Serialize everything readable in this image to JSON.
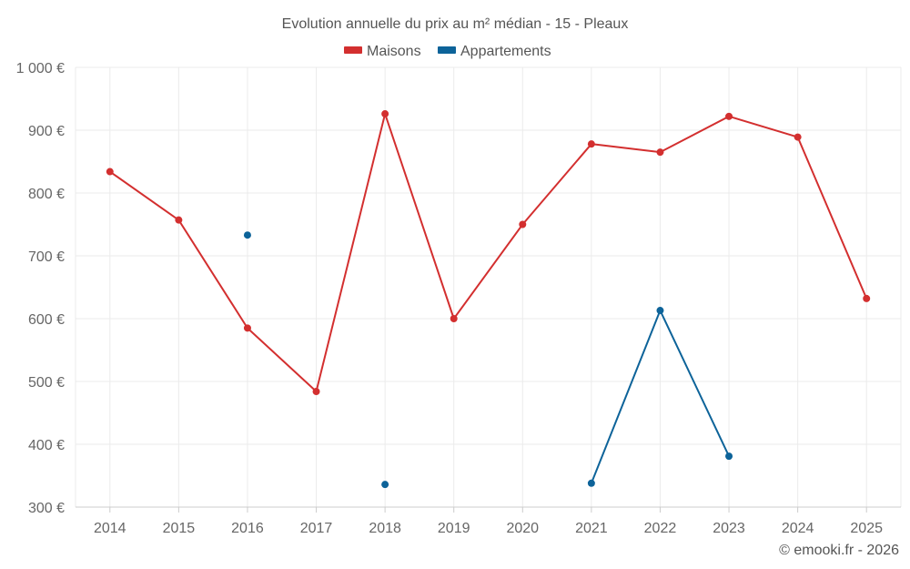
{
  "chart_data": {
    "type": "line",
    "title": "Evolution annuelle du prix au m² médian - 15 - Pleaux",
    "categories": [
      "2014",
      "2015",
      "2016",
      "2017",
      "2018",
      "2019",
      "2020",
      "2021",
      "2022",
      "2023",
      "2024",
      "2025"
    ],
    "ylim": [
      300,
      1000
    ],
    "yticks": [
      300,
      400,
      500,
      600,
      700,
      800,
      900,
      1000
    ],
    "ytick_labels": [
      "300 €",
      "400 €",
      "500 €",
      "600 €",
      "700 €",
      "800 €",
      "900 €",
      "1 000 €"
    ],
    "series": [
      {
        "name": "Maisons",
        "color": "#d32f2f",
        "values": [
          834,
          757,
          585,
          484,
          926,
          600,
          750,
          878,
          865,
          922,
          889,
          632
        ]
      },
      {
        "name": "Appartements",
        "color": "#0d6399",
        "values": [
          null,
          null,
          733,
          null,
          336,
          null,
          null,
          338,
          613,
          381,
          null,
          null
        ]
      }
    ],
    "grid": true,
    "legend_position": "top-center",
    "credit": "© emooki.fr - 2026"
  }
}
